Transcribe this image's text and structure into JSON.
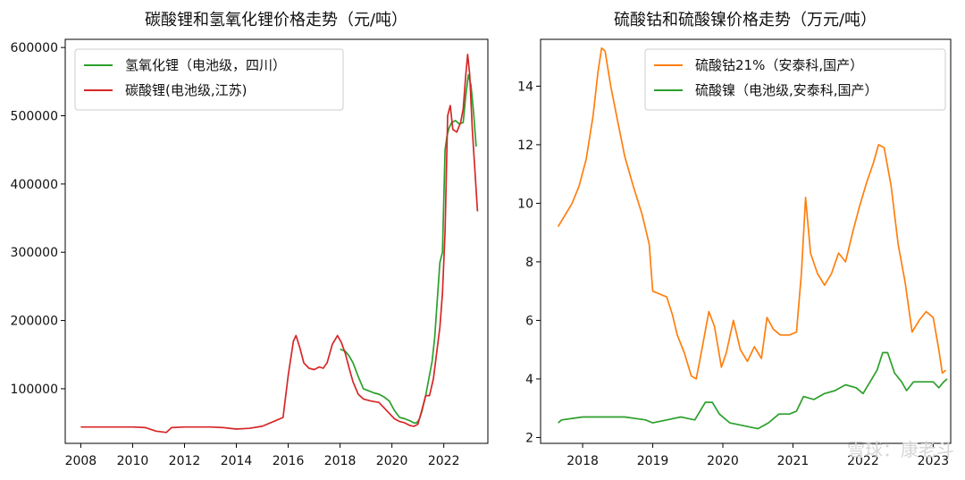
{
  "watermark": "雪球：康老斗",
  "chart_data": [
    {
      "type": "line",
      "title": "碳酸锂和氢氧化锂价格走势（元/吨）",
      "xlabel": "",
      "ylabel": "",
      "xlim": [
        2007.4,
        2023.7
      ],
      "ylim": [
        20000,
        612000
      ],
      "xticks": [
        2008,
        2010,
        2012,
        2014,
        2016,
        2018,
        2020,
        2022
      ],
      "yticks": [
        100000,
        200000,
        300000,
        400000,
        500000,
        600000
      ],
      "legend_position": "top-left",
      "grid": false,
      "series": [
        {
          "name": "氢氧化锂（电池级，四川）",
          "color": "#2ca02c",
          "points": [
            [
              2018.0,
              158000
            ],
            [
              2018.2,
              155000
            ],
            [
              2018.35,
              148000
            ],
            [
              2018.5,
              138000
            ],
            [
              2018.7,
              118000
            ],
            [
              2018.9,
              100000
            ],
            [
              2019.1,
              97000
            ],
            [
              2019.3,
              94000
            ],
            [
              2019.5,
              92000
            ],
            [
              2019.7,
              88000
            ],
            [
              2019.9,
              82000
            ],
            [
              2020.1,
              68000
            ],
            [
              2020.3,
              58000
            ],
            [
              2020.5,
              56000
            ],
            [
              2020.7,
              53000
            ],
            [
              2020.85,
              50000
            ],
            [
              2020.95,
              50000
            ],
            [
              2021.05,
              55000
            ],
            [
              2021.15,
              66000
            ],
            [
              2021.3,
              90000
            ],
            [
              2021.45,
              120000
            ],
            [
              2021.55,
              140000
            ],
            [
              2021.65,
              175000
            ],
            [
              2021.75,
              230000
            ],
            [
              2021.85,
              285000
            ],
            [
              2021.95,
              300000
            ],
            [
              2022.05,
              450000
            ],
            [
              2022.12,
              470000
            ],
            [
              2022.2,
              482000
            ],
            [
              2022.3,
              490000
            ],
            [
              2022.45,
              493000
            ],
            [
              2022.6,
              488000
            ],
            [
              2022.75,
              490000
            ],
            [
              2022.85,
              530000
            ],
            [
              2022.95,
              560000
            ],
            [
              2023.05,
              545000
            ],
            [
              2023.15,
              505000
            ],
            [
              2023.25,
              455000
            ]
          ]
        },
        {
          "name": "碳酸锂(电池级,江苏)",
          "color": "#d62728",
          "points": [
            [
              2008.0,
              44000
            ],
            [
              2009.0,
              44000
            ],
            [
              2010.0,
              44000
            ],
            [
              2010.5,
              43000
            ],
            [
              2010.9,
              38000
            ],
            [
              2011.3,
              36000
            ],
            [
              2011.5,
              43000
            ],
            [
              2012.0,
              44000
            ],
            [
              2012.5,
              44000
            ],
            [
              2013.0,
              44000
            ],
            [
              2013.5,
              43000
            ],
            [
              2014.0,
              41000
            ],
            [
              2014.5,
              42000
            ],
            [
              2015.0,
              45000
            ],
            [
              2015.5,
              53000
            ],
            [
              2015.8,
              58000
            ],
            [
              2016.0,
              120000
            ],
            [
              2016.2,
              170000
            ],
            [
              2016.3,
              178000
            ],
            [
              2016.45,
              160000
            ],
            [
              2016.6,
              138000
            ],
            [
              2016.8,
              130000
            ],
            [
              2017.0,
              128000
            ],
            [
              2017.2,
              132000
            ],
            [
              2017.35,
              130000
            ],
            [
              2017.5,
              138000
            ],
            [
              2017.7,
              165000
            ],
            [
              2017.9,
              178000
            ],
            [
              2018.05,
              168000
            ],
            [
              2018.2,
              152000
            ],
            [
              2018.35,
              130000
            ],
            [
              2018.5,
              110000
            ],
            [
              2018.7,
              92000
            ],
            [
              2018.9,
              85000
            ],
            [
              2019.2,
              82000
            ],
            [
              2019.5,
              80000
            ],
            [
              2019.7,
              72000
            ],
            [
              2019.9,
              64000
            ],
            [
              2020.1,
              56000
            ],
            [
              2020.3,
              52000
            ],
            [
              2020.5,
              50000
            ],
            [
              2020.7,
              46000
            ],
            [
              2020.85,
              45000
            ],
            [
              2021.0,
              48000
            ],
            [
              2021.15,
              68000
            ],
            [
              2021.3,
              90000
            ],
            [
              2021.45,
              90000
            ],
            [
              2021.6,
              115000
            ],
            [
              2021.75,
              160000
            ],
            [
              2021.85,
              190000
            ],
            [
              2021.95,
              240000
            ],
            [
              2022.05,
              330000
            ],
            [
              2022.15,
              500000
            ],
            [
              2022.25,
              515000
            ],
            [
              2022.35,
              480000
            ],
            [
              2022.5,
              476000
            ],
            [
              2022.65,
              490000
            ],
            [
              2022.75,
              510000
            ],
            [
              2022.85,
              560000
            ],
            [
              2022.92,
              590000
            ],
            [
              2023.0,
              560000
            ],
            [
              2023.1,
              480000
            ],
            [
              2023.2,
              420000
            ],
            [
              2023.3,
              360000
            ]
          ]
        }
      ]
    },
    {
      "type": "line",
      "title": "硫酸钴和硫酸镍价格走势（万元/吨）",
      "xlabel": "",
      "ylabel": "",
      "xlim": [
        2017.4,
        2023.25
      ],
      "ylim": [
        1.8,
        15.6
      ],
      "xticks": [
        2018,
        2019,
        2020,
        2021,
        2022,
        2023
      ],
      "yticks": [
        2,
        4,
        6,
        8,
        10,
        12,
        14
      ],
      "legend_position": "top-right",
      "grid": false,
      "series": [
        {
          "name": "硫酸钴21%（安泰科,国产）",
          "color": "#ff7f0e",
          "points": [
            [
              2017.65,
              9.2
            ],
            [
              2017.75,
              9.6
            ],
            [
              2017.85,
              10.0
            ],
            [
              2017.95,
              10.6
            ],
            [
              2018.05,
              11.5
            ],
            [
              2018.15,
              13.0
            ],
            [
              2018.22,
              14.5
            ],
            [
              2018.27,
              15.3
            ],
            [
              2018.32,
              15.2
            ],
            [
              2018.4,
              14.0
            ],
            [
              2018.5,
              12.8
            ],
            [
              2018.6,
              11.6
            ],
            [
              2018.72,
              10.6
            ],
            [
              2018.85,
              9.6
            ],
            [
              2018.95,
              8.6
            ],
            [
              2019.0,
              7.0
            ],
            [
              2019.1,
              6.9
            ],
            [
              2019.2,
              6.8
            ],
            [
              2019.28,
              6.2
            ],
            [
              2019.35,
              5.5
            ],
            [
              2019.45,
              4.9
            ],
            [
              2019.55,
              4.1
            ],
            [
              2019.62,
              4.0
            ],
            [
              2019.7,
              5.0
            ],
            [
              2019.8,
              6.3
            ],
            [
              2019.88,
              5.8
            ],
            [
              2019.98,
              4.4
            ],
            [
              2020.05,
              4.9
            ],
            [
              2020.15,
              6.0
            ],
            [
              2020.25,
              5.0
            ],
            [
              2020.35,
              4.6
            ],
            [
              2020.45,
              5.1
            ],
            [
              2020.55,
              4.7
            ],
            [
              2020.63,
              6.1
            ],
            [
              2020.72,
              5.7
            ],
            [
              2020.82,
              5.5
            ],
            [
              2020.95,
              5.5
            ],
            [
              2021.05,
              5.6
            ],
            [
              2021.12,
              7.6
            ],
            [
              2021.18,
              10.2
            ],
            [
              2021.25,
              8.3
            ],
            [
              2021.35,
              7.6
            ],
            [
              2021.45,
              7.2
            ],
            [
              2021.55,
              7.6
            ],
            [
              2021.65,
              8.3
            ],
            [
              2021.75,
              8.0
            ],
            [
              2021.85,
              9.0
            ],
            [
              2021.95,
              9.9
            ],
            [
              2022.05,
              10.7
            ],
            [
              2022.15,
              11.4
            ],
            [
              2022.22,
              12.0
            ],
            [
              2022.3,
              11.9
            ],
            [
              2022.4,
              10.6
            ],
            [
              2022.5,
              8.6
            ],
            [
              2022.6,
              7.3
            ],
            [
              2022.7,
              5.6
            ],
            [
              2022.8,
              6.0
            ],
            [
              2022.9,
              6.3
            ],
            [
              2023.0,
              6.1
            ],
            [
              2023.08,
              5.0
            ],
            [
              2023.13,
              4.2
            ],
            [
              2023.18,
              4.3
            ]
          ]
        },
        {
          "name": "硫酸镍（电池级,安泰科,国产）",
          "color": "#2ca02c",
          "points": [
            [
              2017.65,
              2.5
            ],
            [
              2017.7,
              2.6
            ],
            [
              2018.0,
              2.7
            ],
            [
              2018.3,
              2.7
            ],
            [
              2018.6,
              2.7
            ],
            [
              2018.9,
              2.6
            ],
            [
              2019.0,
              2.5
            ],
            [
              2019.2,
              2.6
            ],
            [
              2019.4,
              2.7
            ],
            [
              2019.6,
              2.6
            ],
            [
              2019.75,
              3.2
            ],
            [
              2019.85,
              3.2
            ],
            [
              2019.95,
              2.8
            ],
            [
              2020.1,
              2.5
            ],
            [
              2020.3,
              2.4
            ],
            [
              2020.5,
              2.3
            ],
            [
              2020.65,
              2.5
            ],
            [
              2020.8,
              2.8
            ],
            [
              2020.95,
              2.8
            ],
            [
              2021.05,
              2.9
            ],
            [
              2021.15,
              3.4
            ],
            [
              2021.3,
              3.3
            ],
            [
              2021.45,
              3.5
            ],
            [
              2021.6,
              3.6
            ],
            [
              2021.75,
              3.8
            ],
            [
              2021.9,
              3.7
            ],
            [
              2022.0,
              3.5
            ],
            [
              2022.1,
              3.9
            ],
            [
              2022.2,
              4.3
            ],
            [
              2022.28,
              4.9
            ],
            [
              2022.35,
              4.9
            ],
            [
              2022.45,
              4.2
            ],
            [
              2022.55,
              3.9
            ],
            [
              2022.62,
              3.6
            ],
            [
              2022.72,
              3.9
            ],
            [
              2022.85,
              3.9
            ],
            [
              2023.0,
              3.9
            ],
            [
              2023.08,
              3.7
            ],
            [
              2023.15,
              3.9
            ],
            [
              2023.2,
              4.0
            ]
          ]
        }
      ]
    }
  ]
}
